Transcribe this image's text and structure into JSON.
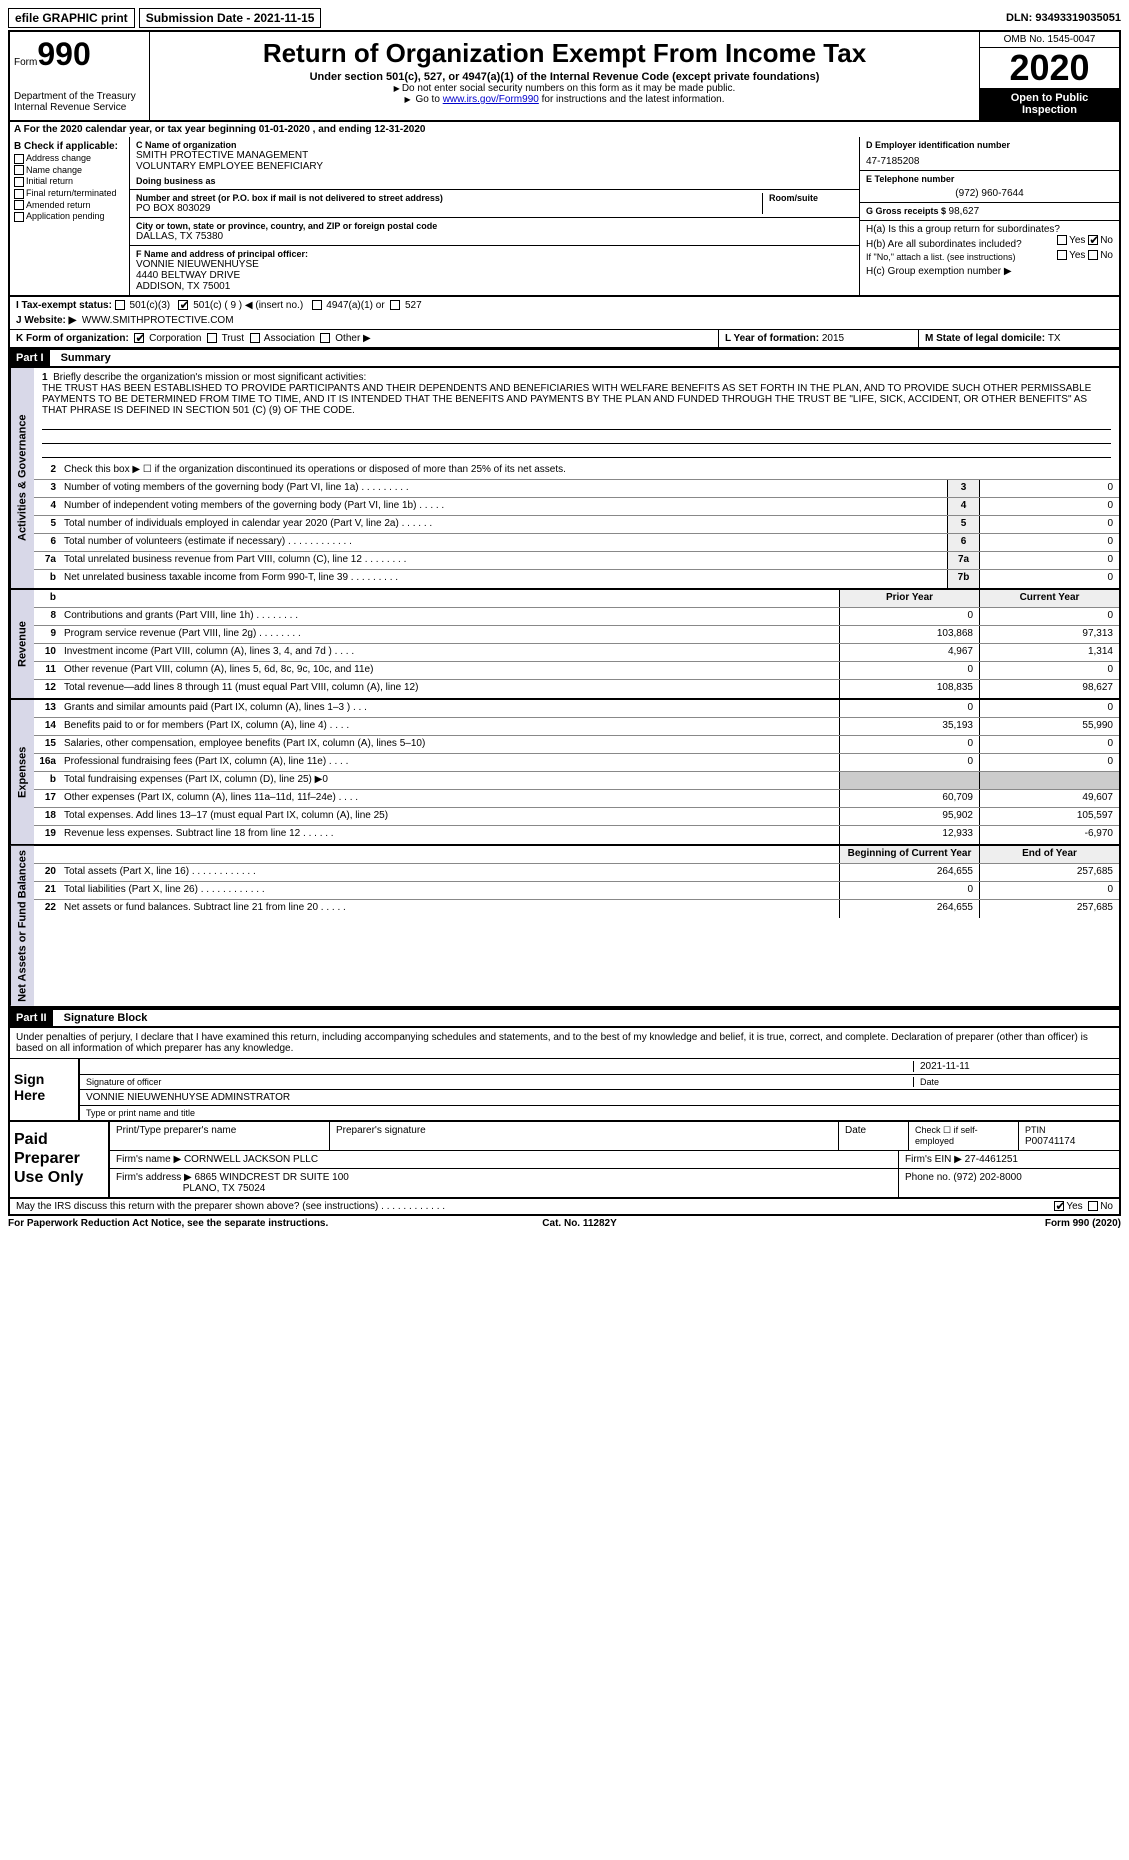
{
  "topbar": {
    "efile": "efile GRAPHIC print",
    "submission_label": "Submission Date - 2021-11-15",
    "dln_label": "DLN: 93493319035051"
  },
  "header": {
    "form_prefix": "Form",
    "form_number": "990",
    "dept": "Department of the Treasury",
    "irs": "Internal Revenue Service",
    "title": "Return of Organization Exempt From Income Tax",
    "sub": "Under section 501(c), 527, or 4947(a)(1) of the Internal Revenue Code (except private foundations)",
    "note1": "Do not enter social security numbers on this form as it may be made public.",
    "note2_prefix": "Go to ",
    "note2_link": "www.irs.gov/Form990",
    "note2_suffix": " for instructions and the latest information.",
    "omb": "OMB No. 1545-0047",
    "year": "2020",
    "open": "Open to Public Inspection"
  },
  "section_a": "A  For the 2020 calendar year, or tax year beginning 01-01-2020   , and ending 12-31-2020",
  "box_b": {
    "hdr": "B Check if applicable:",
    "opts": [
      "Address change",
      "Name change",
      "Initial return",
      "Final return/terminated",
      "Amended return",
      "Application pending"
    ]
  },
  "box_c": {
    "name_lbl": "C Name of organization",
    "name1": "SMITH PROTECTIVE MANAGEMENT",
    "name2": "VOLUNTARY EMPLOYEE BENEFICIARY",
    "dba_lbl": "Doing business as",
    "addr_lbl": "Number and street (or P.O. box if mail is not delivered to street address)",
    "room_lbl": "Room/suite",
    "addr": "PO BOX 803029",
    "city_lbl": "City or town, state or province, country, and ZIP or foreign postal code",
    "city": "DALLAS, TX  75380",
    "officer_lbl": "F Name and address of principal officer:",
    "officer_name": "VONNIE NIEUWENHUYSE",
    "officer_addr1": "4440 BELTWAY DRIVE",
    "officer_addr2": "ADDISON, TX  75001"
  },
  "box_d": {
    "ein_lbl": "D Employer identification number",
    "ein": "47-7185208",
    "tel_lbl": "E Telephone number",
    "tel": "(972) 960-7644",
    "gross_lbl": "G Gross receipts $ ",
    "gross": "98,627"
  },
  "box_h": {
    "ha": "H(a)  Is this a group return for subordinates?",
    "hb": "H(b)  Are all subordinates included?",
    "hb_note": "If \"No,\" attach a list. (see instructions)",
    "hc": "H(c)  Group exemption number ▶",
    "yes": "Yes",
    "no": "No"
  },
  "row_i": {
    "lbl": "I    Tax-exempt status:",
    "o1": "501(c)(3)",
    "o2": "501(c) ( 9 ) ◀ (insert no.)",
    "o3": "4947(a)(1) or",
    "o4": "527"
  },
  "row_j": {
    "lbl": "J   Website: ▶",
    "val": "WWW.SMITHPROTECTIVE.COM"
  },
  "row_k": {
    "lbl": "K Form of organization:",
    "corp": "Corporation",
    "trust": "Trust",
    "assoc": "Association",
    "other": "Other ▶",
    "l_lbl": "L Year of formation: ",
    "l_val": "2015",
    "m_lbl": "M State of legal domicile: ",
    "m_val": "TX"
  },
  "part1": {
    "hdr": "Part I",
    "title": "Summary",
    "q1_lbl": "1",
    "q1_desc": "Briefly describe the organization's mission or most significant activities:",
    "mission": "THE TRUST HAS BEEN ESTABLISHED TO PROVIDE PARTICIPANTS AND THEIR DEPENDENTS AND BENEFICIARIES WITH WELFARE BENEFITS AS SET FORTH IN THE PLAN, AND TO PROVIDE SUCH OTHER PERMISSABLE PAYMENTS TO BE DETERMINED FROM TIME TO TIME, AND IT IS INTENDED THAT THE BENEFITS AND PAYMENTS BY THE PLAN AND FUNDED THROUGH THE TRUST BE \"LIFE, SICK, ACCIDENT, OR OTHER BENEFITS\" AS THAT PHRASE IS DEFINED IN SECTION 501 (C) (9) OF THE CODE.",
    "q2": "Check this box ▶ ☐  if the organization discontinued its operations or disposed of more than 25% of its net assets."
  },
  "gov_rows": [
    {
      "n": "3",
      "d": "Number of voting members of the governing body (Part VI, line 1a)   .    .    .    .    .    .    .    .    .",
      "c": "3",
      "v": "0"
    },
    {
      "n": "4",
      "d": "Number of independent voting members of the governing body (Part VI, line 1b)   .    .    .    .    .",
      "c": "4",
      "v": "0"
    },
    {
      "n": "5",
      "d": "Total number of individuals employed in calendar year 2020 (Part V, line 2a)   .    .    .    .    .    .",
      "c": "5",
      "v": "0"
    },
    {
      "n": "6",
      "d": "Total number of volunteers (estimate if necessary)   .    .    .    .    .    .    .    .    .    .    .    .",
      "c": "6",
      "v": "0"
    },
    {
      "n": "7a",
      "d": "Total unrelated business revenue from Part VIII, column (C), line 12   .    .    .    .    .    .    .    .",
      "c": "7a",
      "v": "0"
    },
    {
      "n": "b",
      "d": "Net unrelated business taxable income from Form 990-T, line 39   .    .    .    .    .    .    .    .    .",
      "c": "7b",
      "v": "0"
    }
  ],
  "rev_hdr": {
    "n": "b",
    "py": "Prior Year",
    "cy": "Current Year"
  },
  "rev_rows": [
    {
      "n": "8",
      "d": "Contributions and grants (Part VIII, line 1h)   .    .    .    .    .    .    .    .",
      "py": "0",
      "cy": "0"
    },
    {
      "n": "9",
      "d": "Program service revenue (Part VIII, line 2g)   .    .    .    .    .    .    .    .",
      "py": "103,868",
      "cy": "97,313"
    },
    {
      "n": "10",
      "d": "Investment income (Part VIII, column (A), lines 3, 4, and 7d )   .    .    .    .",
      "py": "4,967",
      "cy": "1,314"
    },
    {
      "n": "11",
      "d": "Other revenue (Part VIII, column (A), lines 5, 6d, 8c, 9c, 10c, and 11e)",
      "py": "0",
      "cy": "0"
    },
    {
      "n": "12",
      "d": "Total revenue—add lines 8 through 11 (must equal Part VIII, column (A), line 12)",
      "py": "108,835",
      "cy": "98,627"
    }
  ],
  "exp_rows": [
    {
      "n": "13",
      "d": "Grants and similar amounts paid (Part IX, column (A), lines 1–3 )  .    .    .",
      "py": "0",
      "cy": "0"
    },
    {
      "n": "14",
      "d": "Benefits paid to or for members (Part IX, column (A), line 4)   .    .    .    .",
      "py": "35,193",
      "cy": "55,990"
    },
    {
      "n": "15",
      "d": "Salaries, other compensation, employee benefits (Part IX, column (A), lines 5–10)",
      "py": "0",
      "cy": "0"
    },
    {
      "n": "16a",
      "d": "Professional fundraising fees (Part IX, column (A), line 11e)   .    .    .    .",
      "py": "0",
      "cy": "0"
    },
    {
      "n": "b",
      "d": "Total fundraising expenses (Part IX, column (D), line 25) ▶0",
      "py": "",
      "cy": "",
      "grey": true
    },
    {
      "n": "17",
      "d": "Other expenses (Part IX, column (A), lines 11a–11d, 11f–24e)   .    .    .    .",
      "py": "60,709",
      "cy": "49,607"
    },
    {
      "n": "18",
      "d": "Total expenses. Add lines 13–17 (must equal Part IX, column (A), line 25)",
      "py": "95,902",
      "cy": "105,597"
    },
    {
      "n": "19",
      "d": "Revenue less expenses. Subtract line 18 from line 12   .    .    .    .    .    .",
      "py": "12,933",
      "cy": "-6,970"
    }
  ],
  "na_hdr": {
    "py": "Beginning of Current Year",
    "cy": "End of Year"
  },
  "na_rows": [
    {
      "n": "20",
      "d": "Total assets (Part X, line 16)   .    .    .    .    .    .    .    .    .    .    .    .",
      "py": "264,655",
      "cy": "257,685"
    },
    {
      "n": "21",
      "d": "Total liabilities (Part X, line 26)   .    .    .    .    .    .    .    .    .    .    .    .",
      "py": "0",
      "cy": "0"
    },
    {
      "n": "22",
      "d": "Net assets or fund balances. Subtract line 21 from line 20   .    .    .    .    .",
      "py": "264,655",
      "cy": "257,685"
    }
  ],
  "vtabs": {
    "gov": "Activities & Governance",
    "rev": "Revenue",
    "exp": "Expenses",
    "na": "Net Assets or Fund Balances"
  },
  "part2": {
    "hdr": "Part II",
    "title": "Signature Block",
    "intro": "Under penalties of perjury, I declare that I have examined this return, including accompanying schedules and statements, and to the best of my knowledge and belief, it is true, correct, and complete. Declaration of preparer (other than officer) is based on all information of which preparer has any knowledge.",
    "sign_here": "Sign Here",
    "sig_officer": "Signature of officer",
    "sig_date": "2021-11-11",
    "date_lbl": "Date",
    "typed": "VONNIE NIEUWENHUYSE ADMINSTRATOR",
    "typed_lbl": "Type or print name and title"
  },
  "prep": {
    "hdr": "Paid Preparer Use Only",
    "c1": "Print/Type preparer's name",
    "c2": "Preparer's signature",
    "c3": "Date",
    "c4": "Check ☐ if self-employed",
    "c5_lbl": "PTIN",
    "c5": "P00741174",
    "firm_lbl": "Firm's name      ▶",
    "firm": "CORNWELL JACKSON PLLC",
    "ein_lbl": "Firm's EIN ▶ ",
    "ein": "27-4461251",
    "addr_lbl": "Firm's address ▶",
    "addr1": "6865 WINDCREST DR SUITE 100",
    "addr2": "PLANO, TX  75024",
    "phone_lbl": "Phone no. ",
    "phone": "(972) 202-8000"
  },
  "discuss": {
    "q": "May the IRS discuss this return with the preparer shown above? (see instructions)   .    .    .    .    .    .    .    .    .    .    .    .",
    "yes": "Yes",
    "no": "No"
  },
  "footer": {
    "l": "For Paperwork Reduction Act Notice, see the separate instructions.",
    "c": "Cat. No. 11282Y",
    "r": "Form 990 (2020)"
  }
}
